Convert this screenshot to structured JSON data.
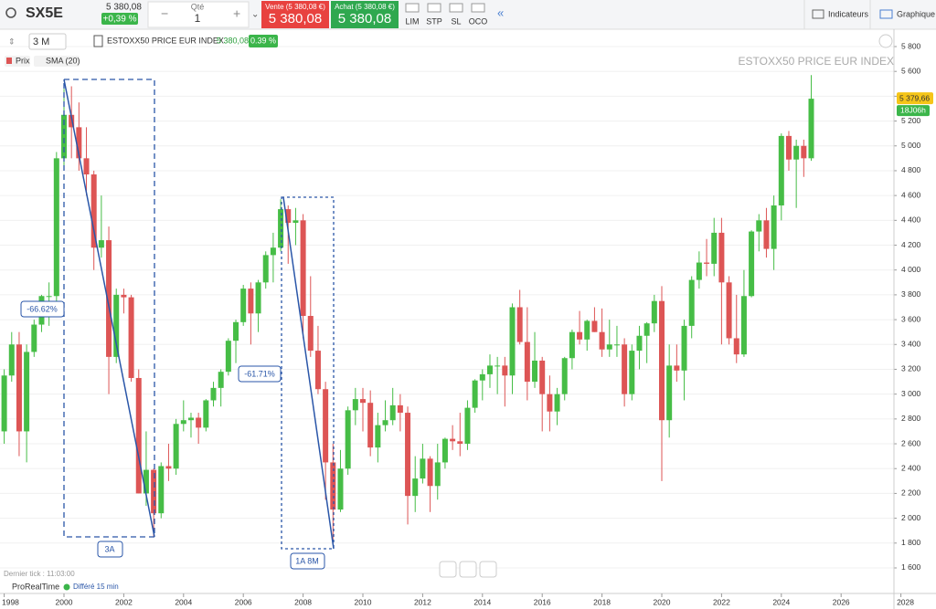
{
  "toolbar": {
    "symbol": "SX5E",
    "price": "5 380,08",
    "change": "+0,39 %",
    "qty_label": "Qté",
    "qty": "1",
    "minus": "−",
    "plus": "+",
    "sell_label": "Vente (5 380,08 €)",
    "sell_price": "5 380,08",
    "buy_label": "Achat (5 380,08 €)",
    "buy_price": "5 380,08",
    "orders": [
      "LIM",
      "STP",
      "SL",
      "OCO"
    ],
    "indicators": "Indicateurs",
    "chart": "Graphique"
  },
  "chart_header": {
    "period": "3 M",
    "instrument": "ESTOXX50 PRICE EUR INDEX",
    "price": "5 380,08",
    "change": "0.39 %",
    "legend": [
      "Prix",
      "SMA (20)"
    ]
  },
  "chart_data": {
    "type": "candlestick",
    "watermark": "ESTOXX50 PRICE EUR INDEX",
    "color_up": "#46bd46",
    "color_down": "#dd5555",
    "grid": true,
    "xlim": [
      1998,
      2028
    ],
    "xticks": [
      1998,
      2000,
      2002,
      2004,
      2006,
      2008,
      2010,
      2012,
      2014,
      2016,
      2018,
      2020,
      2022,
      2024,
      2026,
      2028
    ],
    "ylim": [
      1560,
      5900
    ],
    "yticks": [
      {
        "value": 1600,
        "label": "1 600"
      },
      {
        "value": 1800,
        "label": "1 800"
      },
      {
        "value": 2000,
        "label": "2 000"
      },
      {
        "value": 2200,
        "label": "2 200"
      },
      {
        "value": 2400,
        "label": "2 400"
      },
      {
        "value": 2600,
        "label": "2 600"
      },
      {
        "value": 2800,
        "label": "2 800"
      },
      {
        "value": 3000,
        "label": "3 000"
      },
      {
        "value": 3200,
        "label": "3 200"
      },
      {
        "value": 3400,
        "label": "3 400"
      },
      {
        "value": 3600,
        "label": "3 600"
      },
      {
        "value": 3800,
        "label": "3 800"
      },
      {
        "value": 4000,
        "label": "4 000"
      },
      {
        "value": 4200,
        "label": "4 200"
      },
      {
        "value": 4400,
        "label": "4 400"
      },
      {
        "value": 4600,
        "label": "4 600"
      },
      {
        "value": 4800,
        "label": "4 800"
      },
      {
        "value": 5000,
        "label": "5 000"
      },
      {
        "value": 5200,
        "label": "5 200"
      },
      {
        "value": 5400,
        "label": "5 400"
      },
      {
        "value": 5600,
        "label": "5 600"
      },
      {
        "value": 5800,
        "label": "5 800"
      }
    ],
    "last_price": {
      "value": 5379.66,
      "label": "5 379,66"
    },
    "countdown": "18J06h",
    "annotations": [
      "-66.62%",
      "3A",
      "-61.71%",
      "1A 8M"
    ],
    "x": [
      1998,
      1998.25,
      1998.5,
      1998.75,
      1999,
      1999.25,
      1999.5,
      1999.75,
      2000,
      2000.25,
      2000.5,
      2000.75,
      2001,
      2001.25,
      2001.5,
      2001.75,
      2002,
      2002.25,
      2002.5,
      2002.75,
      2003,
      2003.25,
      2003.5,
      2003.75,
      2004,
      2004.25,
      2004.5,
      2004.75,
      2005,
      2005.25,
      2005.5,
      2005.75,
      2006,
      2006.25,
      2006.5,
      2006.75,
      2007,
      2007.25,
      2007.5,
      2007.75,
      2008,
      2008.25,
      2008.5,
      2008.75,
      2009,
      2009.25,
      2009.5,
      2009.75,
      2010,
      2010.25,
      2010.5,
      2010.75,
      2011,
      2011.25,
      2011.5,
      2011.75,
      2012,
      2012.25,
      2012.5,
      2012.75,
      2013,
      2013.25,
      2013.5,
      2013.75,
      2014,
      2014.25,
      2014.5,
      2014.75,
      2015,
      2015.25,
      2015.5,
      2015.75,
      2016,
      2016.25,
      2016.5,
      2016.75,
      2017,
      2017.25,
      2017.5,
      2017.75,
      2018,
      2018.25,
      2018.5,
      2018.75,
      2019,
      2019.25,
      2019.5,
      2019.75,
      2020,
      2020.25,
      2020.5,
      2020.75,
      2021,
      2021.25,
      2021.5,
      2021.75,
      2022,
      2022.25,
      2022.5,
      2022.75,
      2023,
      2023.25,
      2023.5,
      2023.75,
      2024,
      2024.25,
      2024.5,
      2024.75,
      2025
    ],
    "ohlc": [
      [
        2700,
        3200,
        2600,
        3150
      ],
      [
        3150,
        3500,
        3100,
        3400
      ],
      [
        3400,
        3500,
        2500,
        2700
      ],
      [
        2700,
        3400,
        2450,
        3340
      ],
      [
        3340,
        3600,
        3300,
        3560
      ],
      [
        3560,
        3800,
        3500,
        3790
      ],
      [
        3790,
        3900,
        3550,
        3790
      ],
      [
        3790,
        4950,
        3700,
        4900
      ],
      [
        4900,
        5460,
        4800,
        5250
      ],
      [
        5250,
        5480,
        4900,
        5150
      ],
      [
        5150,
        5350,
        4800,
        4900
      ],
      [
        4900,
        5150,
        4600,
        4770
      ],
      [
        4770,
        4800,
        4000,
        4180
      ],
      [
        4180,
        4600,
        4100,
        4240
      ],
      [
        4240,
        4350,
        3000,
        3300
      ],
      [
        3300,
        3850,
        3250,
        3800
      ],
      [
        3800,
        3850,
        3650,
        3780
      ],
      [
        3780,
        3800,
        3100,
        3130
      ],
      [
        3130,
        3200,
        2200,
        2200
      ],
      [
        2200,
        2700,
        2100,
        2390
      ],
      [
        2390,
        2400,
        1850,
        2040
      ],
      [
        2040,
        2450,
        2000,
        2420
      ],
      [
        2420,
        2600,
        2300,
        2400
      ],
      [
        2400,
        2800,
        2350,
        2760
      ],
      [
        2760,
        2950,
        2700,
        2790
      ],
      [
        2790,
        2850,
        2650,
        2810
      ],
      [
        2810,
        2850,
        2600,
        2730
      ],
      [
        2730,
        2960,
        2700,
        2950
      ],
      [
        2950,
        3100,
        2900,
        3050
      ],
      [
        3050,
        3200,
        2900,
        3180
      ],
      [
        3180,
        3450,
        3150,
        3430
      ],
      [
        3430,
        3600,
        3250,
        3580
      ],
      [
        3580,
        3880,
        3550,
        3850
      ],
      [
        3850,
        3900,
        3400,
        3650
      ],
      [
        3650,
        3920,
        3500,
        3900
      ],
      [
        3900,
        4150,
        3850,
        4120
      ],
      [
        4120,
        4300,
        3900,
        4180
      ],
      [
        4180,
        4570,
        4150,
        4490
      ],
      [
        4490,
        4520,
        4050,
        4380
      ],
      [
        4380,
        4500,
        4200,
        4400
      ],
      [
        4400,
        4450,
        3450,
        3630
      ],
      [
        3630,
        3950,
        3300,
        3350
      ],
      [
        3350,
        3550,
        3000,
        3040
      ],
      [
        3040,
        3100,
        2150,
        2450
      ],
      [
        2450,
        2600,
        1800,
        2070
      ],
      [
        2070,
        2550,
        2050,
        2400
      ],
      [
        2400,
        2900,
        2350,
        2870
      ],
      [
        2870,
        3050,
        2750,
        2960
      ],
      [
        2960,
        3050,
        2700,
        2930
      ],
      [
        2930,
        3030,
        2500,
        2570
      ],
      [
        2570,
        2850,
        2450,
        2750
      ],
      [
        2750,
        2950,
        2700,
        2790
      ],
      [
        2790,
        3050,
        2750,
        2910
      ],
      [
        2910,
        3000,
        2700,
        2850
      ],
      [
        2850,
        2900,
        1950,
        2180
      ],
      [
        2180,
        2500,
        2050,
        2320
      ],
      [
        2320,
        2600,
        2280,
        2480
      ],
      [
        2480,
        2500,
        2050,
        2260
      ],
      [
        2260,
        2600,
        2150,
        2450
      ],
      [
        2450,
        2650,
        2400,
        2640
      ],
      [
        2640,
        2750,
        2550,
        2620
      ],
      [
        2620,
        2850,
        2500,
        2600
      ],
      [
        2600,
        2950,
        2550,
        2890
      ],
      [
        2890,
        3120,
        2850,
        3110
      ],
      [
        3110,
        3200,
        2950,
        3160
      ],
      [
        3160,
        3320,
        3050,
        3230
      ],
      [
        3230,
        3300,
        3000,
        3230
      ],
      [
        3230,
        3300,
        2900,
        3150
      ],
      [
        3150,
        3730,
        3000,
        3700
      ],
      [
        3700,
        3840,
        3400,
        3420
      ],
      [
        3420,
        3700,
        2950,
        3100
      ],
      [
        3100,
        3500,
        3050,
        3270
      ],
      [
        3270,
        3300,
        2700,
        3000
      ],
      [
        3000,
        3150,
        2700,
        2860
      ],
      [
        2860,
        3050,
        2750,
        3000
      ],
      [
        3000,
        3300,
        2950,
        3290
      ],
      [
        3290,
        3520,
        3200,
        3500
      ],
      [
        3500,
        3670,
        3400,
        3440
      ],
      [
        3440,
        3600,
        3350,
        3590
      ],
      [
        3590,
        3700,
        3500,
        3500
      ],
      [
        3500,
        3690,
        3300,
        3360
      ],
      [
        3360,
        3600,
        3300,
        3400
      ],
      [
        3400,
        3550,
        3300,
        3400
      ],
      [
        3400,
        3450,
        2900,
        3000
      ],
      [
        3000,
        3400,
        2950,
        3350
      ],
      [
        3350,
        3550,
        3200,
        3470
      ],
      [
        3470,
        3580,
        3250,
        3570
      ],
      [
        3570,
        3800,
        3500,
        3750
      ],
      [
        3750,
        3870,
        2300,
        2790
      ],
      [
        2790,
        3400,
        2650,
        3230
      ],
      [
        3230,
        3400,
        3100,
        3190
      ],
      [
        3190,
        3600,
        2950,
        3550
      ],
      [
        3550,
        3950,
        3450,
        3920
      ],
      [
        3920,
        4150,
        3850,
        4060
      ],
      [
        4060,
        4250,
        3950,
        4050
      ],
      [
        4050,
        4420,
        3950,
        4300
      ],
      [
        4300,
        4420,
        3400,
        3900
      ],
      [
        3900,
        3950,
        3400,
        3450
      ],
      [
        3450,
        3800,
        3250,
        3320
      ],
      [
        3320,
        4000,
        3300,
        3790
      ],
      [
        3790,
        4320,
        3780,
        4310
      ],
      [
        4310,
        4450,
        4150,
        4400
      ],
      [
        4400,
        4500,
        4100,
        4170
      ],
      [
        4170,
        4600,
        4000,
        4520
      ],
      [
        4520,
        5100,
        4400,
        5080
      ],
      [
        5080,
        5120,
        4800,
        4890
      ],
      [
        4890,
        5050,
        4500,
        5000
      ],
      [
        5000,
        5050,
        4750,
        4900
      ],
      [
        4900,
        5570,
        4880,
        5380
      ]
    ]
  },
  "footer": {
    "last_tick": "Dernier tick : 11:03:00",
    "brand": "ProRealTime",
    "delay": "Différé 15 min"
  }
}
